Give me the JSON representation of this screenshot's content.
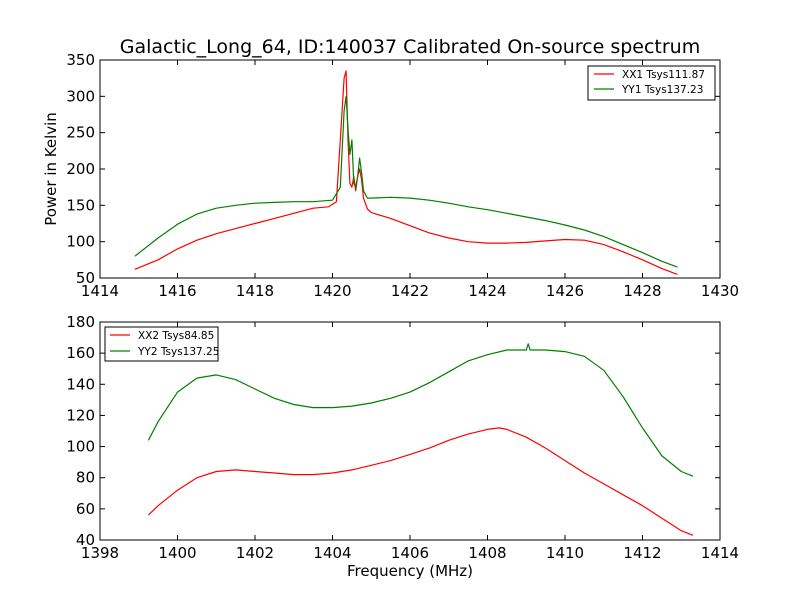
{
  "figure": {
    "title": "Galactic_Long_64, ID:140037 Calibrated On-source spectrum"
  },
  "chart_data": [
    {
      "type": "line",
      "xlabel": "",
      "ylabel": "Power in Kelvin",
      "xlim": [
        1414,
        1430
      ],
      "ylim": [
        50,
        350
      ],
      "xticks": [
        1414,
        1416,
        1418,
        1420,
        1422,
        1424,
        1426,
        1428,
        1430
      ],
      "yticks": [
        50,
        100,
        150,
        200,
        250,
        300,
        350
      ],
      "legend_position": "top-right",
      "series": [
        {
          "name": "XX1 Tsys111.87",
          "color": "#ff0000",
          "x": [
            1414.9,
            1415.5,
            1416.0,
            1416.5,
            1417.0,
            1417.5,
            1418.0,
            1418.5,
            1419.0,
            1419.5,
            1419.9,
            1420.1,
            1420.2,
            1420.3,
            1420.35,
            1420.4,
            1420.45,
            1420.5,
            1420.55,
            1420.6,
            1420.65,
            1420.7,
            1420.75,
            1420.8,
            1420.9,
            1421.0,
            1421.5,
            1422.0,
            1422.5,
            1423.0,
            1423.5,
            1424.0,
            1424.5,
            1425.0,
            1425.5,
            1426.0,
            1426.5,
            1427.0,
            1427.5,
            1428.0,
            1428.5,
            1428.9
          ],
          "values": [
            62,
            75,
            90,
            102,
            111,
            118,
            125,
            132,
            139,
            146,
            148,
            155,
            240,
            325,
            335,
            240,
            180,
            175,
            190,
            170,
            190,
            200,
            185,
            160,
            145,
            140,
            132,
            122,
            112,
            105,
            100,
            98,
            98,
            99,
            101,
            103,
            102,
            96,
            86,
            75,
            63,
            55
          ]
        },
        {
          "name": "YY1 Tsys137.23",
          "color": "#008000",
          "x": [
            1414.9,
            1415.5,
            1416.0,
            1416.5,
            1417.0,
            1417.5,
            1418.0,
            1418.5,
            1419.0,
            1419.5,
            1420.0,
            1420.2,
            1420.3,
            1420.35,
            1420.4,
            1420.45,
            1420.5,
            1420.55,
            1420.6,
            1420.65,
            1420.7,
            1420.75,
            1420.8,
            1420.9,
            1421.0,
            1421.5,
            1422.0,
            1422.5,
            1423.0,
            1423.5,
            1424.0,
            1424.5,
            1425.0,
            1425.5,
            1426.0,
            1426.5,
            1427.0,
            1427.5,
            1428.0,
            1428.5,
            1428.9
          ],
          "values": [
            80,
            105,
            124,
            138,
            146,
            150,
            153,
            154,
            155,
            155,
            157,
            175,
            280,
            300,
            255,
            220,
            240,
            180,
            175,
            190,
            215,
            195,
            170,
            160,
            160,
            161,
            160,
            157,
            153,
            148,
            144,
            139,
            134,
            129,
            123,
            116,
            107,
            96,
            85,
            73,
            65
          ]
        }
      ]
    },
    {
      "type": "line",
      "xlabel": "Frequency (MHz)",
      "ylabel": "",
      "xlim": [
        1398,
        1414
      ],
      "ylim": [
        40,
        180
      ],
      "xticks": [
        1398,
        1400,
        1402,
        1404,
        1406,
        1408,
        1410,
        1412,
        1414
      ],
      "yticks": [
        40,
        60,
        80,
        100,
        120,
        140,
        160,
        180
      ],
      "legend_position": "top-left",
      "series": [
        {
          "name": "XX2 Tsys84.85",
          "color": "#ff0000",
          "x": [
            1399.25,
            1399.5,
            1400.0,
            1400.5,
            1401.0,
            1401.5,
            1402.0,
            1402.5,
            1403.0,
            1403.5,
            1404.0,
            1404.5,
            1405.0,
            1405.5,
            1406.0,
            1406.5,
            1407.0,
            1407.5,
            1408.0,
            1408.3,
            1408.5,
            1409.0,
            1409.5,
            1410.0,
            1410.5,
            1411.0,
            1411.5,
            1412.0,
            1412.5,
            1413.0,
            1413.3
          ],
          "values": [
            56,
            62,
            72,
            80,
            84,
            85,
            84,
            83,
            82,
            82,
            83,
            85,
            88,
            91,
            95,
            99,
            104,
            108,
            111,
            112,
            111,
            106,
            99,
            91,
            83,
            76,
            69,
            62,
            54,
            46,
            43
          ]
        },
        {
          "name": "YY2 Tsys137.25",
          "color": "#008000",
          "x": [
            1399.25,
            1399.5,
            1400.0,
            1400.5,
            1401.0,
            1401.5,
            1402.0,
            1402.5,
            1403.0,
            1403.5,
            1404.0,
            1404.5,
            1405.0,
            1405.5,
            1406.0,
            1406.5,
            1407.0,
            1407.5,
            1408.0,
            1408.5,
            1409.0,
            1409.05,
            1409.1,
            1409.5,
            1410.0,
            1410.5,
            1411.0,
            1411.5,
            1412.0,
            1412.5,
            1413.0,
            1413.3
          ],
          "values": [
            104,
            116,
            135,
            144,
            146,
            143,
            137,
            131,
            127,
            125,
            125,
            126,
            128,
            131,
            135,
            141,
            148,
            155,
            159,
            162,
            162,
            166,
            162,
            162,
            161,
            158,
            149,
            132,
            112,
            94,
            84,
            81
          ]
        }
      ]
    }
  ]
}
